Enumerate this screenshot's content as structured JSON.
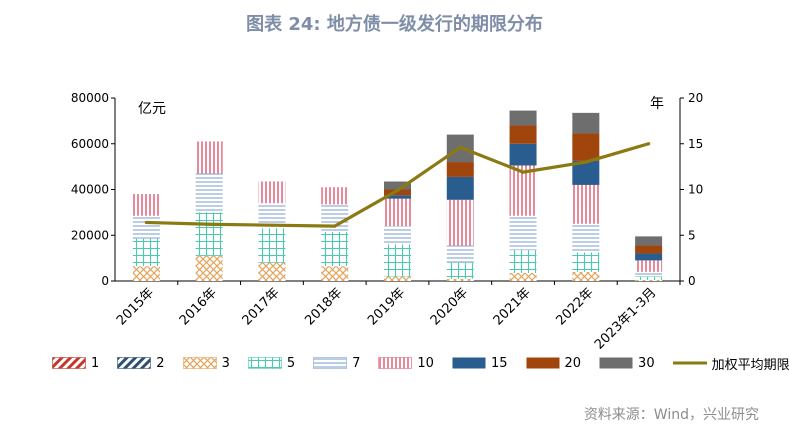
{
  "title": "图表 24: 地方债一级发行的期限分布",
  "source": "资料来源：Wind，兴业研究",
  "colors": {
    "y1": "#c0392b",
    "y2": "#2f4f6f",
    "y3": "#e3a35a",
    "y5": "#48c9b0",
    "y7": "#85a5cf",
    "y10": "#e06b82",
    "y15": "#2a5d8f",
    "y20": "#a0460c",
    "y30": "#6e6e6e",
    "line": "#8b7a12"
  },
  "chart_data": {
    "type": "bar",
    "stacked": true,
    "categories": [
      "2015年",
      "2016年",
      "2017年",
      "2018年",
      "2019年",
      "2020年",
      "2021年",
      "2022年",
      "2023年1-3月"
    ],
    "left_axis_unit": "亿元",
    "right_axis_unit": "年",
    "ylim": [
      0,
      80000
    ],
    "y_ticks": [
      0,
      20000,
      40000,
      60000,
      80000
    ],
    "y2lim": [
      0,
      20
    ],
    "y2_ticks": [
      0,
      5,
      10,
      15,
      20
    ],
    "grid": false,
    "legend_position": "bottom",
    "series": [
      {
        "name": "1",
        "key": "y1",
        "pattern": "diag-red",
        "values": [
          0,
          0,
          0,
          0,
          0,
          0,
          0,
          0,
          0
        ]
      },
      {
        "name": "2",
        "key": "y2",
        "pattern": "diag-navy",
        "values": [
          0,
          0,
          0,
          0,
          0,
          0,
          0,
          0,
          0
        ]
      },
      {
        "name": "3",
        "key": "y3",
        "pattern": "cross-orange",
        "values": [
          6500,
          11000,
          8000,
          6500,
          2000,
          1000,
          3500,
          4000,
          500
        ]
      },
      {
        "name": "5",
        "key": "y5",
        "pattern": "grid-teal",
        "values": [
          12000,
          19000,
          15000,
          15000,
          14000,
          7000,
          10000,
          8500,
          1500
        ]
      },
      {
        "name": "7",
        "key": "y7",
        "pattern": "hlines-blue",
        "values": [
          10000,
          17000,
          11000,
          12000,
          8000,
          7500,
          15000,
          12500,
          2000
        ]
      },
      {
        "name": "10",
        "key": "y10",
        "pattern": "vlines-pink",
        "values": [
          9500,
          14000,
          9500,
          7500,
          12000,
          20000,
          22000,
          17000,
          5000
        ]
      },
      {
        "name": "15",
        "key": "y15",
        "pattern": "solid",
        "values": [
          0,
          0,
          0,
          0,
          1500,
          10000,
          9500,
          10500,
          3000
        ]
      },
      {
        "name": "20",
        "key": "y20",
        "pattern": "solid",
        "values": [
          0,
          0,
          0,
          0,
          2500,
          6500,
          8000,
          12000,
          3500
        ]
      },
      {
        "name": "30",
        "key": "y30",
        "pattern": "solid",
        "values": [
          0,
          0,
          0,
          0,
          3500,
          12000,
          6500,
          9000,
          4000
        ]
      }
    ],
    "line_series": {
      "name": "加权平均期限(rhs)",
      "key": "line",
      "axis": "right",
      "values": [
        6.4,
        6.2,
        6.1,
        6.0,
        9.9,
        14.6,
        11.9,
        13.0,
        15.0
      ]
    }
  }
}
